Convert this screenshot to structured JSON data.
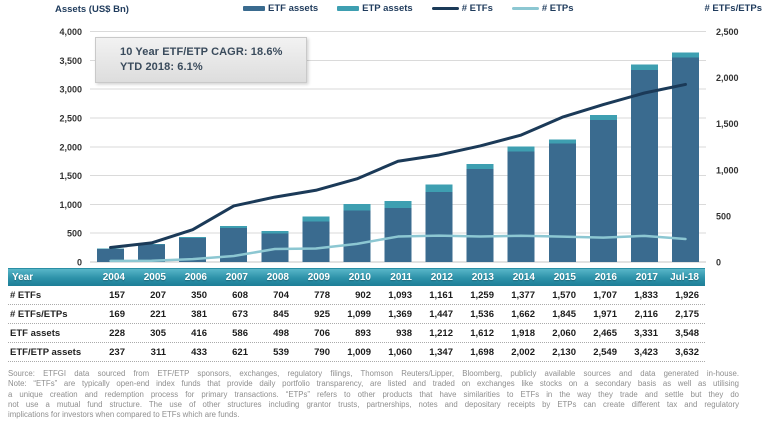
{
  "header": {
    "left_axis_title": "Assets (US$ Bn)",
    "right_axis_title": "# ETFs/ETPs",
    "legend": [
      {
        "label": "ETF assets",
        "type": "bar",
        "color": "#3A6B8F"
      },
      {
        "label": "ETP assets",
        "type": "bar",
        "color": "#3E9FB1"
      },
      {
        "label": "# ETFs",
        "type": "line",
        "color": "#1B3A58"
      },
      {
        "label": "# ETPs",
        "type": "line",
        "color": "#8CC7D2"
      }
    ]
  },
  "annotation": {
    "line1": "10 Year ETF/ETP CAGR: 18.6%",
    "line2": "YTD 2018: 6.1%"
  },
  "chart_data": {
    "type": "bar+line combo (stacked bars on left axis, lines on right axis)",
    "title": "",
    "categories": [
      "2004",
      "2005",
      "2006",
      "2007",
      "2008",
      "2009",
      "2010",
      "2011",
      "2012",
      "2013",
      "2014",
      "2015",
      "2016",
      "2017",
      "Jul-18"
    ],
    "left_axis": {
      "label": "Assets (US$ Bn)",
      "min": 0,
      "max": 4000,
      "step": 500
    },
    "right_axis": {
      "label": "# ETFs/ETPs",
      "min": 0,
      "max": 2500,
      "step": 500
    },
    "grid": true,
    "legend_position": "top",
    "series": [
      {
        "name": "ETF assets",
        "type": "bar-stacked",
        "axis": "left",
        "color": "#3A6B8F",
        "values": [
          228,
          305,
          416,
          586,
          498,
          706,
          893,
          938,
          1212,
          1612,
          1918,
          2060,
          2465,
          3331,
          3548
        ]
      },
      {
        "name": "ETP assets",
        "type": "bar-stacked",
        "axis": "left",
        "color": "#3E9FB1",
        "values": [
          9,
          6,
          17,
          35,
          41,
          84,
          116,
          122,
          135,
          86,
          84,
          70,
          84,
          92,
          84
        ]
      },
      {
        "name": "# ETFs",
        "type": "line",
        "axis": "right",
        "color": "#1B3A58",
        "values": [
          157,
          207,
          350,
          608,
          704,
          778,
          902,
          1093,
          1161,
          1259,
          1377,
          1570,
          1707,
          1833,
          1926
        ]
      },
      {
        "name": "# ETPs",
        "type": "line",
        "axis": "right",
        "color": "#8CC7D2",
        "values": [
          12,
          14,
          31,
          65,
          141,
          147,
          197,
          276,
          286,
          277,
          285,
          275,
          264,
          283,
          249
        ]
      }
    ]
  },
  "table": {
    "header": [
      "Year",
      "2004",
      "2005",
      "2006",
      "2007",
      "2008",
      "2009",
      "2010",
      "2011",
      "2012",
      "2013",
      "2014",
      "2015",
      "2016",
      "2017",
      "Jul-18"
    ],
    "rows": [
      {
        "label": "# ETFs",
        "values": [
          "157",
          "207",
          "350",
          "608",
          "704",
          "778",
          "902",
          "1,093",
          "1,161",
          "1,259",
          "1,377",
          "1,570",
          "1,707",
          "1,833",
          "1,926"
        ]
      },
      {
        "label": "# ETFs/ETPs",
        "values": [
          "169",
          "221",
          "381",
          "673",
          "845",
          "925",
          "1,099",
          "1,369",
          "1,447",
          "1,536",
          "1,662",
          "1,845",
          "1,971",
          "2,116",
          "2,175"
        ]
      },
      {
        "label": "ETF assets",
        "values": [
          "228",
          "305",
          "416",
          "586",
          "498",
          "706",
          "893",
          "938",
          "1,212",
          "1,612",
          "1,918",
          "2,060",
          "2,465",
          "3,331",
          "3,548"
        ]
      },
      {
        "label": "ETF/ETP assets",
        "values": [
          "237",
          "311",
          "433",
          "621",
          "539",
          "790",
          "1,009",
          "1,060",
          "1,347",
          "1,698",
          "2,002",
          "2,130",
          "2,549",
          "3,423",
          "3,632"
        ]
      }
    ]
  },
  "footnotes": {
    "lines": [
      "Source: ETFGI data sourced from ETF/ETP sponsors, exchanges, regulatory filings, Thomson Reuters/Lipper, Bloomberg, publicly available sources and data generated in-house.",
      "Note: “ETFs” are typically open-end index funds that provide daily portfolio transparency,  are listed and traded on exchanges like stocks on a secondary basis as well as utilising",
      "a unique creation and redemption process for primary transactions.  “ETPs” refers to other products that have similarities to ETFs in the way they trade and settle but they do",
      "not use a mutual fund structure.  The use of other structures including grantor trusts,  partnerships,  notes and depositary receipts by ETPs can create different tax and regulatory",
      "implications for investors when compared to ETFs which are funds."
    ]
  }
}
